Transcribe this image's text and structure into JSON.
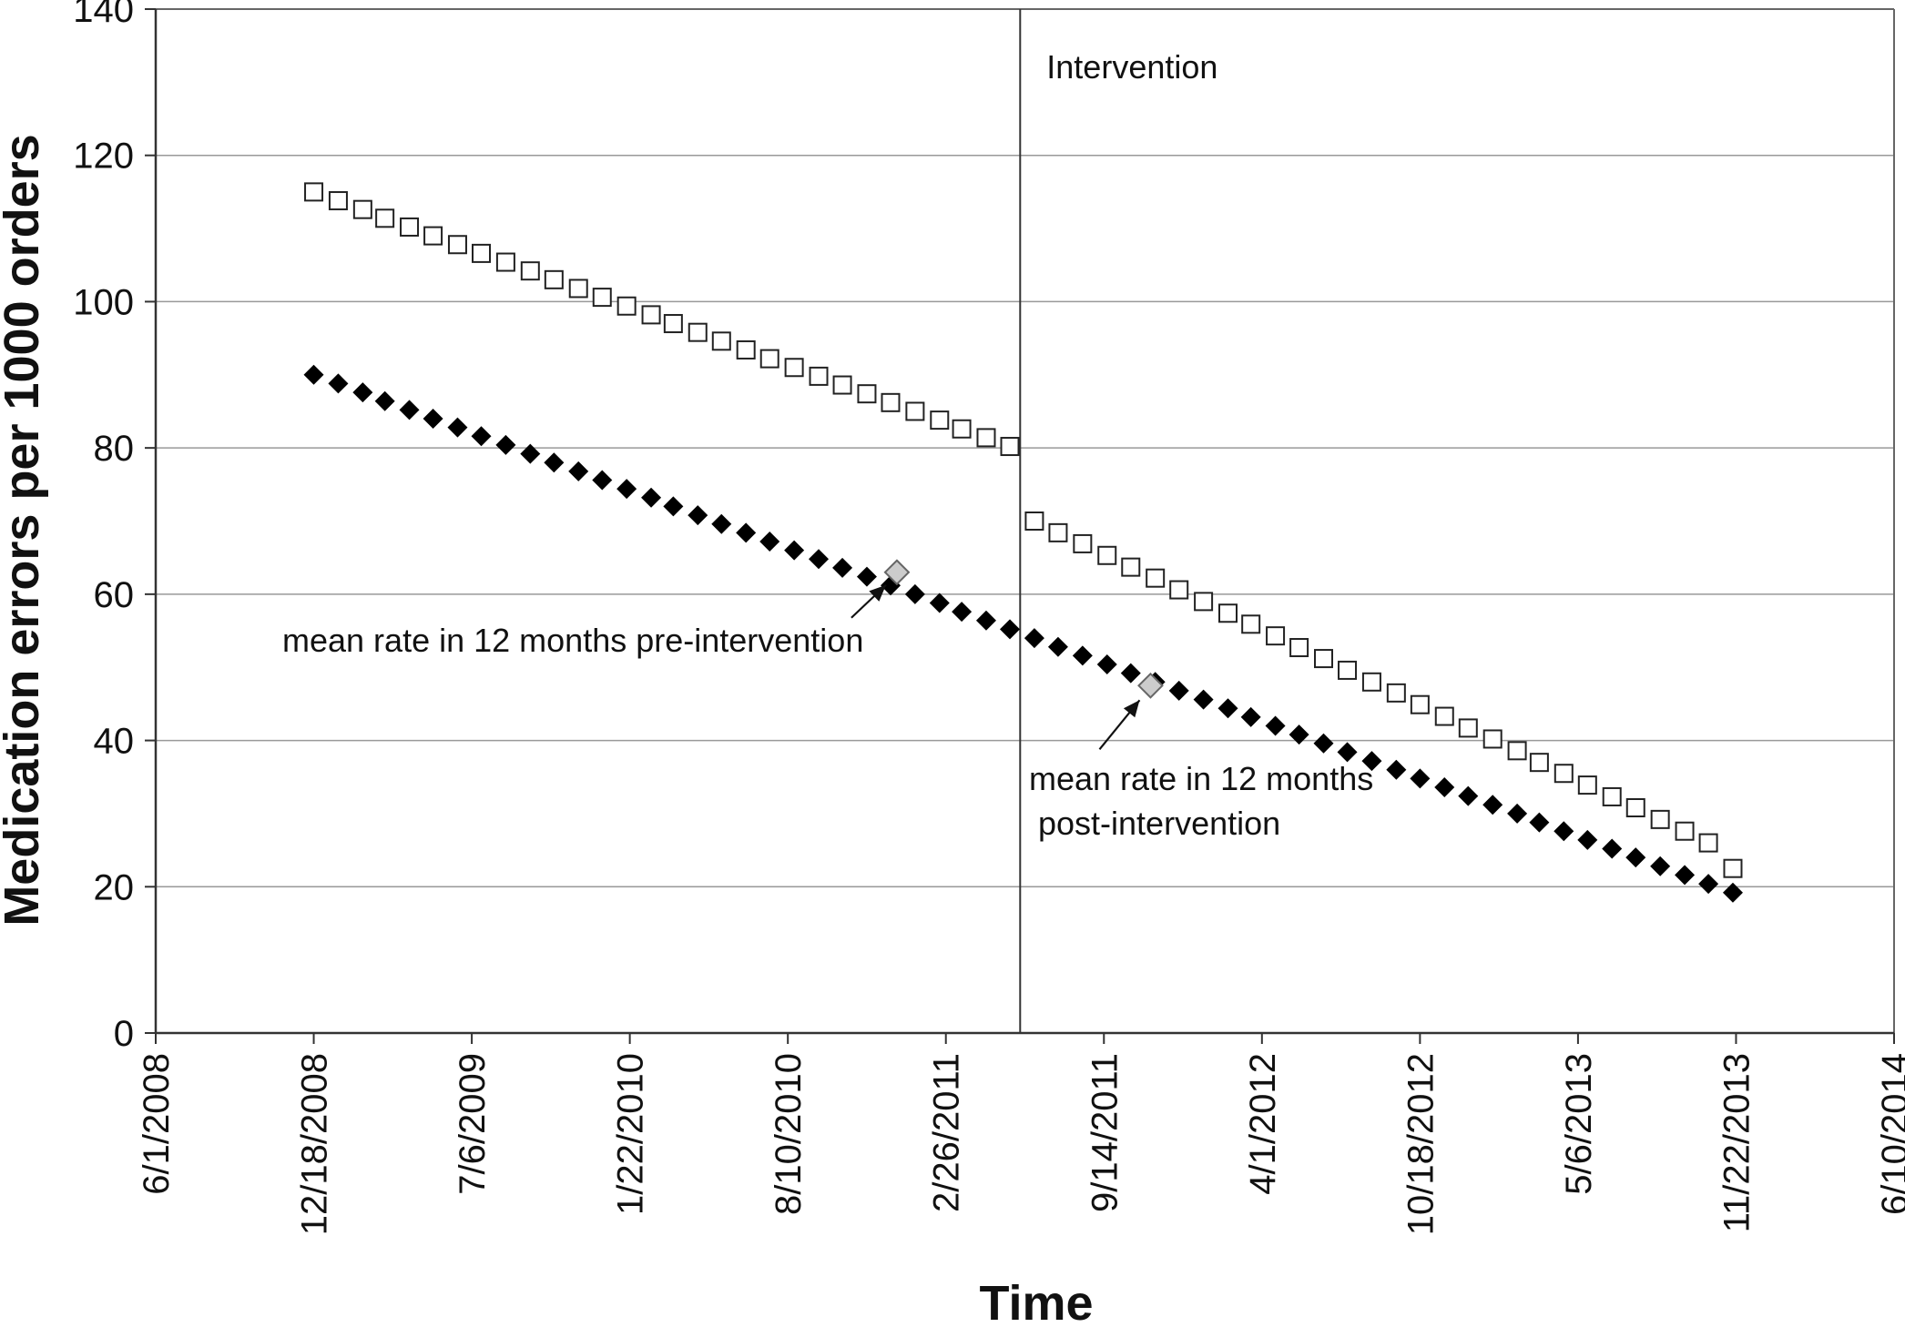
{
  "chart_data": {
    "type": "scatter",
    "title": "",
    "xlabel": "Time",
    "ylabel": "Medication errors per 1000 orders",
    "xlim": [
      "2008-06-01",
      "2014-06-10"
    ],
    "ylim": [
      0,
      140
    ],
    "grid": true,
    "y_ticks": [
      0,
      20,
      40,
      60,
      80,
      100,
      120,
      140
    ],
    "x_ticks": [
      {
        "date": "2008-06-01",
        "label": "6/1/2008"
      },
      {
        "date": "2008-12-18",
        "label": "12/18/2008"
      },
      {
        "date": "2009-07-06",
        "label": "7/6/2009"
      },
      {
        "date": "2010-01-22",
        "label": "1/22/2010"
      },
      {
        "date": "2010-08-10",
        "label": "8/10/2010"
      },
      {
        "date": "2011-02-26",
        "label": "2/26/2011"
      },
      {
        "date": "2011-09-14",
        "label": "9/14/2011"
      },
      {
        "date": "2012-04-01",
        "label": "4/1/2012"
      },
      {
        "date": "2012-10-18",
        "label": "10/18/2012"
      },
      {
        "date": "2013-05-06",
        "label": "5/6/2013"
      },
      {
        "date": "2013-11-22",
        "label": "11/22/2013"
      },
      {
        "date": "2014-06-10",
        "label": "6/10/2014"
      }
    ],
    "series": [
      {
        "marker": "open-square",
        "color": "#222222",
        "x": [
          "2008-12-18",
          "2009-01-18",
          "2009-02-18",
          "2009-03-18",
          "2009-04-18",
          "2009-05-18",
          "2009-06-18",
          "2009-07-18",
          "2009-08-18",
          "2009-09-18",
          "2009-10-18",
          "2009-11-18",
          "2009-12-18",
          "2010-01-18",
          "2010-02-18",
          "2010-03-18",
          "2010-04-18",
          "2010-05-18",
          "2010-06-18",
          "2010-07-18",
          "2010-08-18",
          "2010-09-18",
          "2010-10-18",
          "2010-11-18",
          "2010-12-18",
          "2011-01-18",
          "2011-02-18",
          "2011-03-18",
          "2011-04-18",
          "2011-05-18",
          "2011-06-18",
          "2011-07-18",
          "2011-08-18",
          "2011-09-18",
          "2011-10-18",
          "2011-11-18",
          "2011-12-18",
          "2012-01-18",
          "2012-02-18",
          "2012-03-18",
          "2012-04-18",
          "2012-05-18",
          "2012-06-18",
          "2012-07-18",
          "2012-08-18",
          "2012-09-18",
          "2012-10-18",
          "2012-11-18",
          "2012-12-18",
          "2013-01-18",
          "2013-02-18",
          "2013-03-18",
          "2013-04-18",
          "2013-05-18",
          "2013-06-18",
          "2013-07-18",
          "2013-08-18",
          "2013-09-18",
          "2013-10-18",
          "2013-11-18"
        ],
        "y": [
          115.0,
          113.8,
          112.6,
          111.4,
          110.2,
          109.0,
          107.8,
          106.6,
          105.4,
          104.2,
          103.0,
          101.8,
          100.6,
          99.4,
          98.2,
          97.0,
          95.8,
          94.6,
          93.4,
          92.2,
          91.0,
          89.8,
          88.6,
          87.4,
          86.2,
          85.0,
          83.8,
          82.6,
          81.4,
          80.2,
          70.0,
          68.4,
          66.9,
          65.3,
          63.7,
          62.2,
          60.6,
          59.0,
          57.4,
          55.9,
          54.3,
          52.7,
          51.2,
          49.6,
          48.0,
          46.5,
          44.9,
          43.3,
          41.7,
          40.2,
          38.6,
          37.0,
          35.5,
          33.9,
          32.3,
          30.8,
          29.2,
          27.6,
          26.0,
          22.5
        ]
      },
      {
        "marker": "filled-diamond",
        "color": "#000000",
        "x": [
          "2008-12-18",
          "2009-01-18",
          "2009-02-18",
          "2009-03-18",
          "2009-04-18",
          "2009-05-18",
          "2009-06-18",
          "2009-07-18",
          "2009-08-18",
          "2009-09-18",
          "2009-10-18",
          "2009-11-18",
          "2009-12-18",
          "2010-01-18",
          "2010-02-18",
          "2010-03-18",
          "2010-04-18",
          "2010-05-18",
          "2010-06-18",
          "2010-07-18",
          "2010-08-18",
          "2010-09-18",
          "2010-10-18",
          "2010-11-18",
          "2010-12-18",
          "2011-01-18",
          "2011-02-18",
          "2011-03-18",
          "2011-04-18",
          "2011-05-18",
          "2011-06-18",
          "2011-07-18",
          "2011-08-18",
          "2011-09-18",
          "2011-10-18",
          "2011-11-18",
          "2011-12-18",
          "2012-01-18",
          "2012-02-18",
          "2012-03-18",
          "2012-04-18",
          "2012-05-18",
          "2012-06-18",
          "2012-07-18",
          "2012-08-18",
          "2012-09-18",
          "2012-10-18",
          "2012-11-18",
          "2012-12-18",
          "2013-01-18",
          "2013-02-18",
          "2013-03-18",
          "2013-04-18",
          "2013-05-18",
          "2013-06-18",
          "2013-07-18",
          "2013-08-18",
          "2013-09-18",
          "2013-10-18",
          "2013-11-18"
        ],
        "y": [
          90.0,
          88.8,
          87.6,
          86.4,
          85.2,
          84.0,
          82.8,
          81.6,
          80.4,
          79.2,
          78.0,
          76.8,
          75.6,
          74.4,
          73.2,
          72.0,
          70.8,
          69.6,
          68.4,
          67.2,
          66.0,
          64.8,
          63.6,
          62.4,
          61.2,
          60.0,
          58.8,
          57.6,
          56.4,
          55.2,
          54.0,
          52.8,
          51.6,
          50.4,
          49.2,
          48.0,
          46.8,
          45.6,
          44.4,
          43.2,
          42.0,
          40.8,
          39.6,
          38.4,
          37.2,
          36.0,
          34.8,
          33.6,
          32.4,
          31.2,
          30.0,
          28.8,
          27.6,
          26.4,
          25.2,
          24.0,
          22.8,
          21.6,
          20.4,
          19.2
        ]
      }
    ],
    "mean_points": [
      {
        "x": "2010-12-26",
        "y": 63.0,
        "label": "mean rate in 12 months pre-intervention"
      },
      {
        "x": "2011-11-12",
        "y": 47.5,
        "label_lines": [
          "mean rate in 12 months",
          "post-intervention"
        ]
      }
    ],
    "intervention": {
      "x": "2011-05-31",
      "label": "Intervention"
    },
    "marker_colors": {
      "open": "#ffffff",
      "filled": "#000000",
      "mean": "#cccccc",
      "grid": "#999999"
    }
  }
}
